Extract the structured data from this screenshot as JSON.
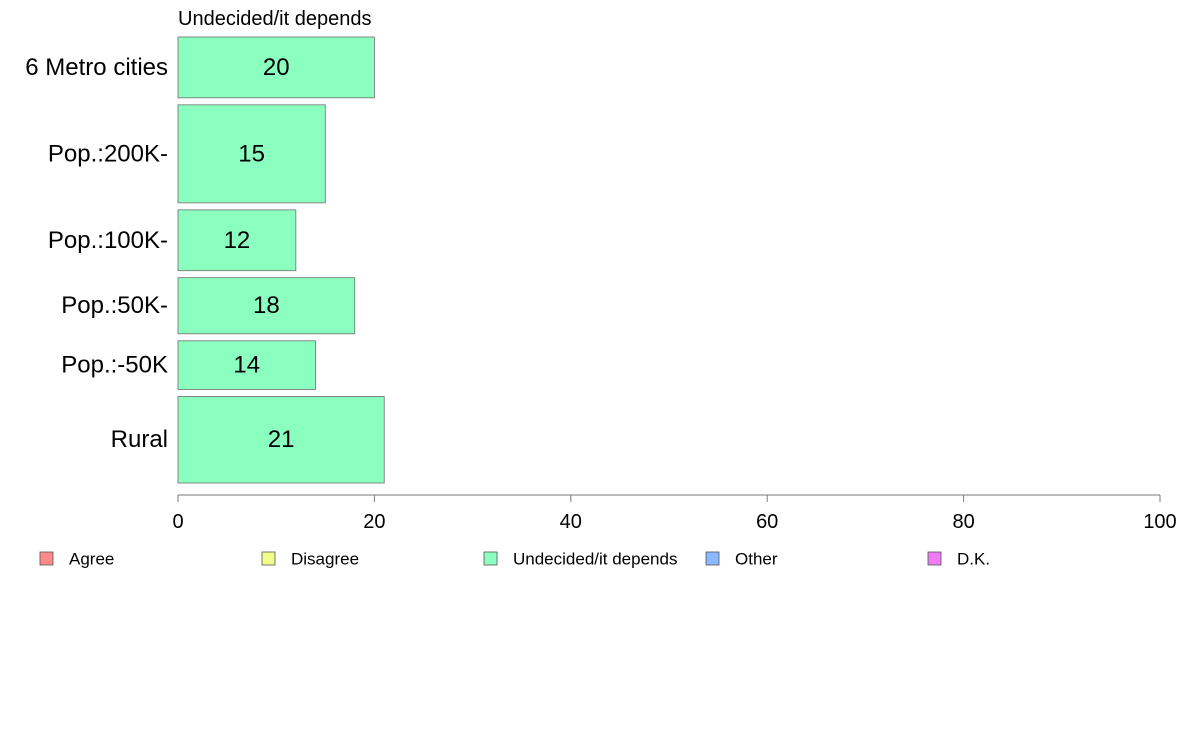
{
  "chart_data": {
    "type": "bar",
    "orientation": "horizontal",
    "title": "Undecided/it depends",
    "categories": [
      "6 Metro cities",
      "Pop.:200K-",
      "Pop.:100K-",
      "Pop.:50K-",
      "Pop.:-50K",
      "Rural"
    ],
    "series": [
      {
        "name": "Undecided/it depends",
        "color": "#8bffbf",
        "values": [
          20,
          15,
          12,
          18,
          14,
          21
        ],
        "labels": [
          "20",
          "15",
          "12",
          "18",
          "14",
          "21"
        ]
      }
    ],
    "weights": [
      0.9,
      1.45,
      0.9,
      0.83,
      0.72,
      1.28
    ],
    "xlim": [
      0,
      100
    ],
    "xticks": [
      0,
      20,
      40,
      60,
      80,
      100
    ],
    "xtick_labels": [
      "0",
      "20",
      "40",
      "60",
      "80",
      "100"
    ],
    "xlabel": "",
    "ylabel": "",
    "grid": false,
    "legend": {
      "position": "bottom",
      "items": [
        {
          "label": "Agree",
          "color": "#ff8a8a"
        },
        {
          "label": "Disagree",
          "color": "#f1ff8a"
        },
        {
          "label": "Undecided/it depends",
          "color": "#8bffbf"
        },
        {
          "label": "Other",
          "color": "#8ab8ff"
        },
        {
          "label": "D.K.",
          "color": "#f07cf5"
        }
      ]
    }
  }
}
